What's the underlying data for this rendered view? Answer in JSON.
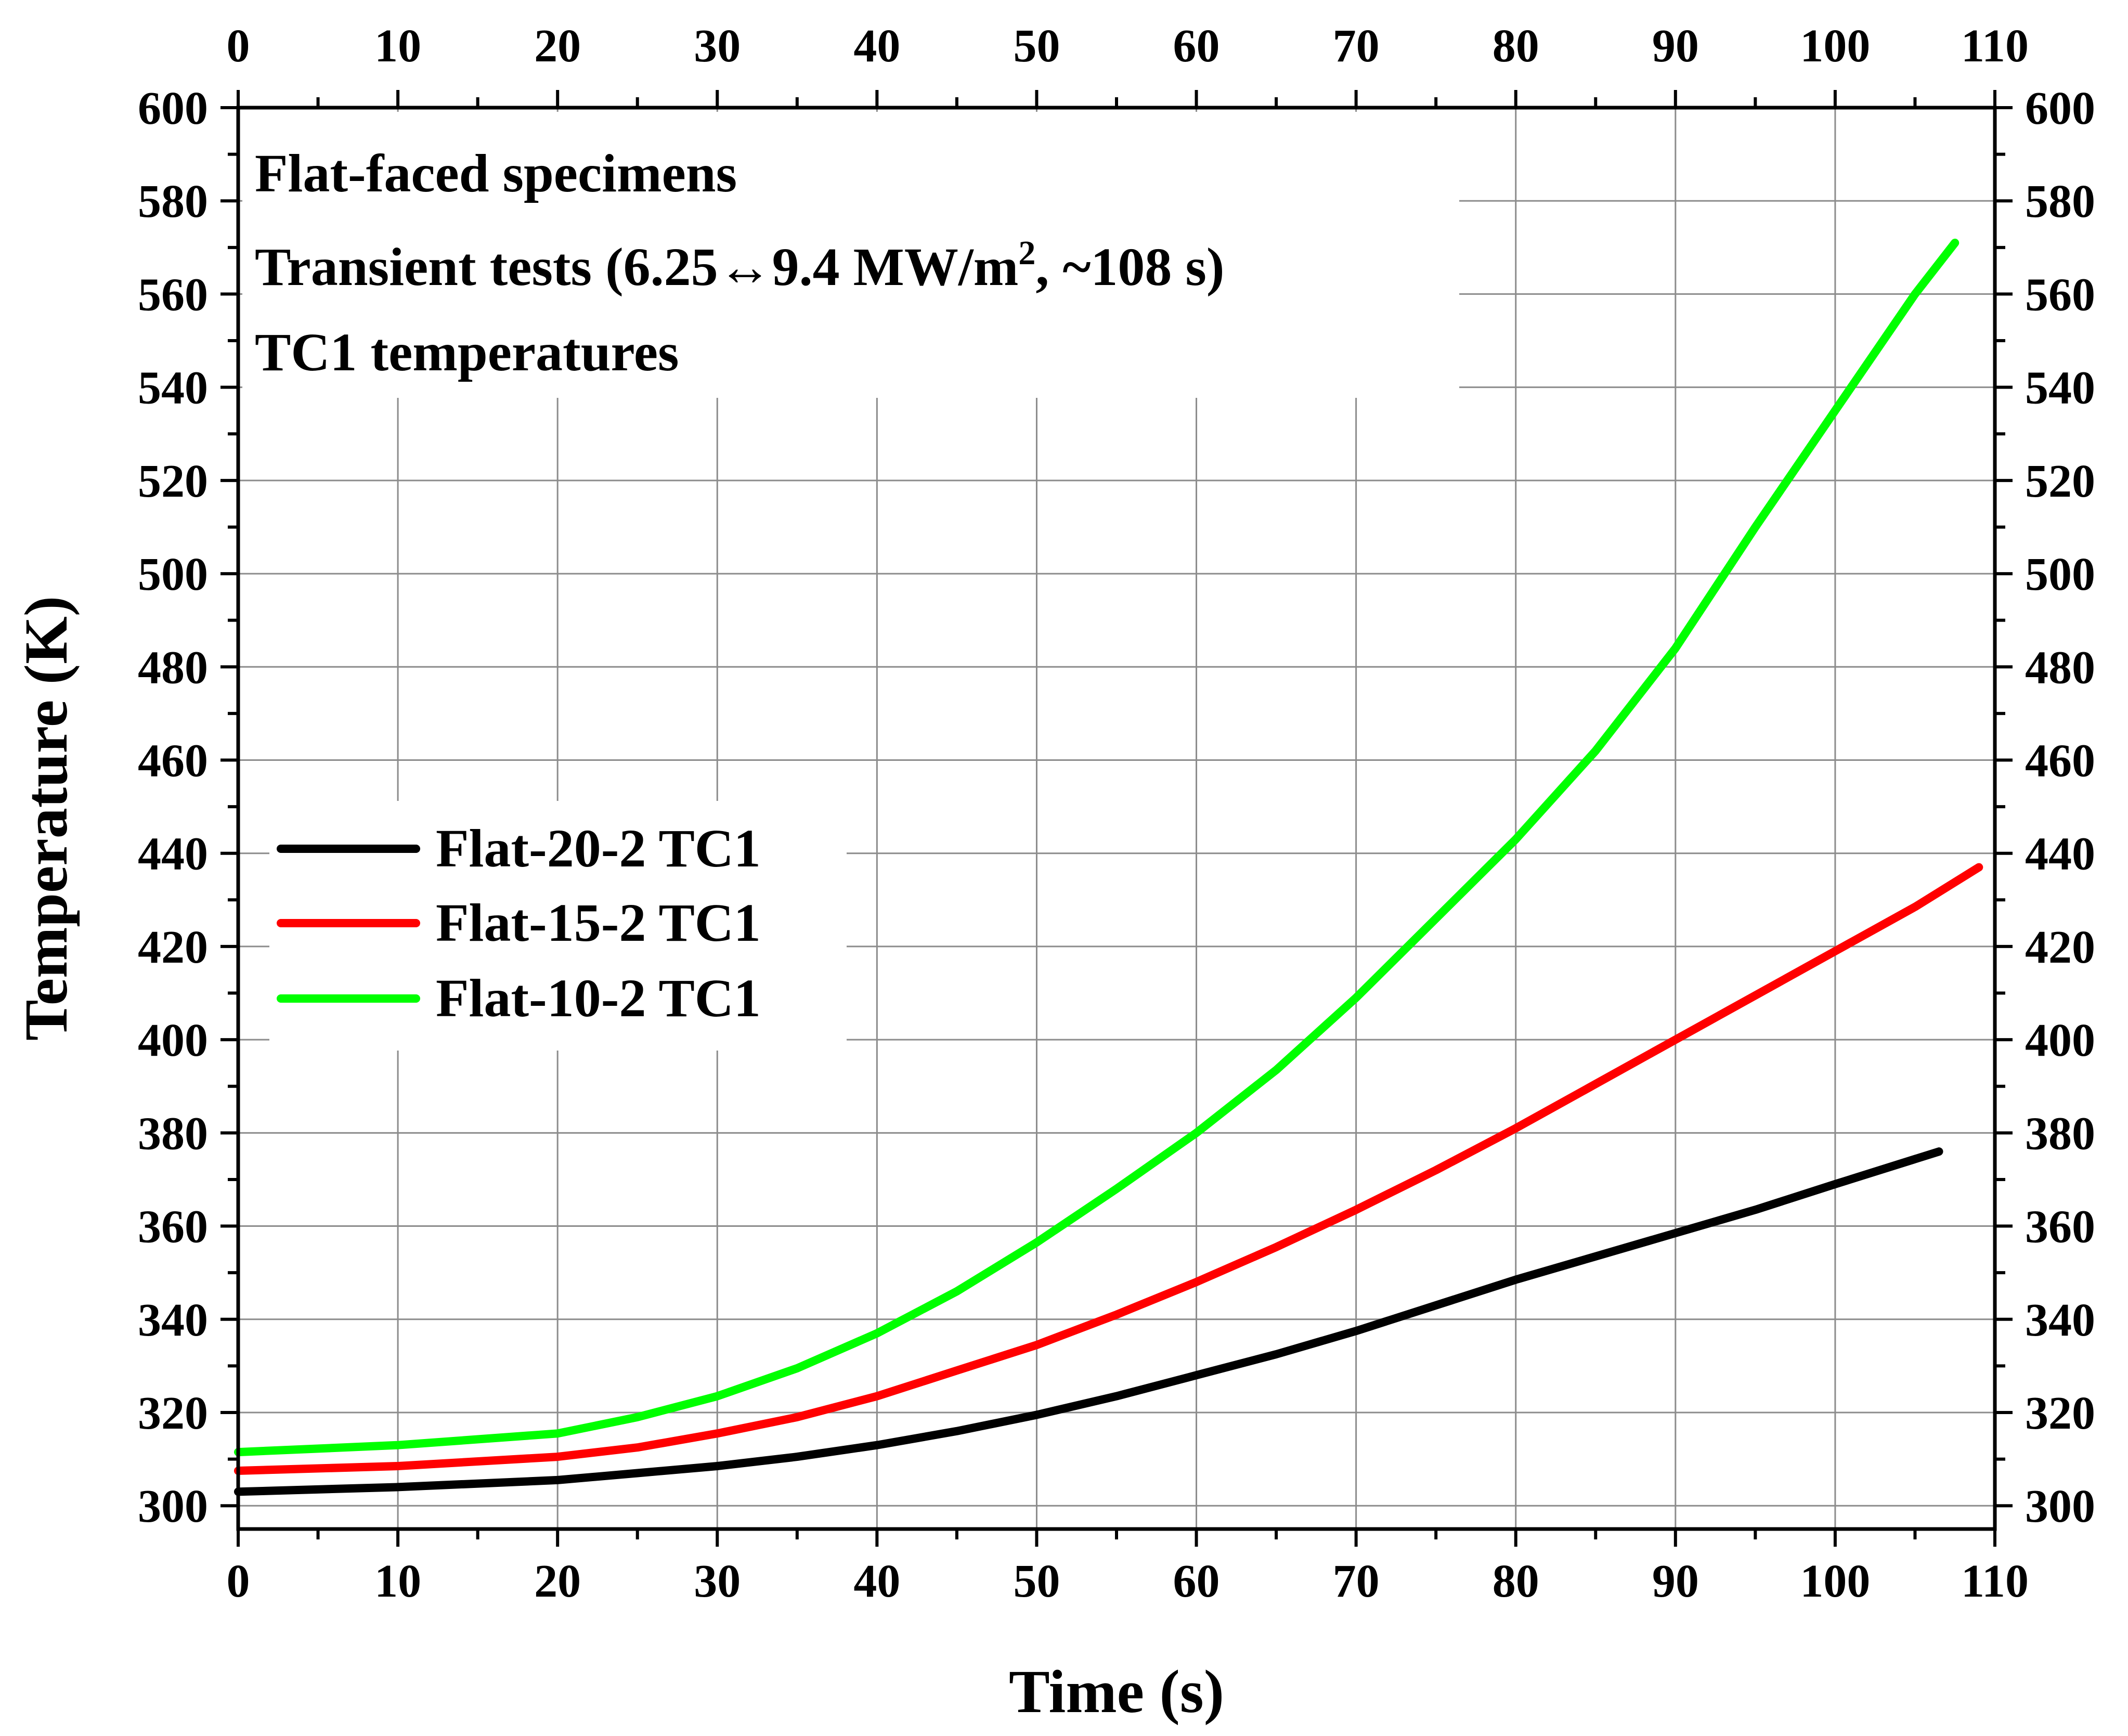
{
  "chart_data": {
    "type": "line",
    "title": "",
    "xlabel": "Time (s)",
    "ylabel": "Temperature (K)",
    "xlim": [
      0,
      110
    ],
    "ylim": [
      295,
      600
    ],
    "x_ticks": [
      0,
      10,
      20,
      30,
      40,
      50,
      60,
      70,
      80,
      90,
      100,
      110
    ],
    "y_ticks": [
      300,
      320,
      340,
      360,
      380,
      400,
      420,
      440,
      460,
      480,
      500,
      520,
      540,
      560,
      580,
      600
    ],
    "grid": true,
    "mirror_axes": true,
    "legend_position": "middle-left",
    "annotations": [
      "Flat-faced specimens",
      "Transient tests (6.25↔9.4 MW/m², ~108 s)",
      "TC1 temperatures"
    ],
    "series": [
      {
        "name": "Flat-20-2 TC1",
        "color": "#000000",
        "x": [
          0,
          10,
          20,
          25,
          30,
          35,
          40,
          45,
          50,
          55,
          60,
          65,
          70,
          75,
          80,
          85,
          90,
          95,
          100,
          106.5
        ],
        "y": [
          303,
          304,
          305.5,
          307,
          308.5,
          310.5,
          313,
          316,
          319.5,
          323.5,
          328,
          332.5,
          337.5,
          343,
          348.5,
          353.5,
          358.5,
          363.5,
          369,
          376
        ]
      },
      {
        "name": "Flat-15-2 TC1",
        "color": "#ff0000",
        "x": [
          0,
          10,
          20,
          25,
          30,
          35,
          40,
          45,
          50,
          55,
          60,
          65,
          70,
          75,
          80,
          85,
          90,
          95,
          100,
          105,
          109
        ],
        "y": [
          307.5,
          308.5,
          310.5,
          312.5,
          315.5,
          319,
          323.5,
          329,
          334.5,
          341,
          348,
          355.5,
          363.5,
          372,
          381,
          390.5,
          400,
          409.5,
          419,
          428.5,
          437
        ]
      },
      {
        "name": "Flat-10-2 TC1",
        "color": "#00ff00",
        "x": [
          0,
          10,
          20,
          25,
          30,
          35,
          40,
          45,
          50,
          55,
          60,
          65,
          70,
          75,
          80,
          85,
          90,
          95,
          100,
          105,
          107.5
        ],
        "y": [
          311.5,
          313,
          315.5,
          319,
          323.5,
          329.5,
          337,
          346,
          356.5,
          368,
          380,
          393.5,
          409,
          426,
          443,
          462,
          484,
          510,
          535,
          560,
          571
        ]
      }
    ]
  }
}
